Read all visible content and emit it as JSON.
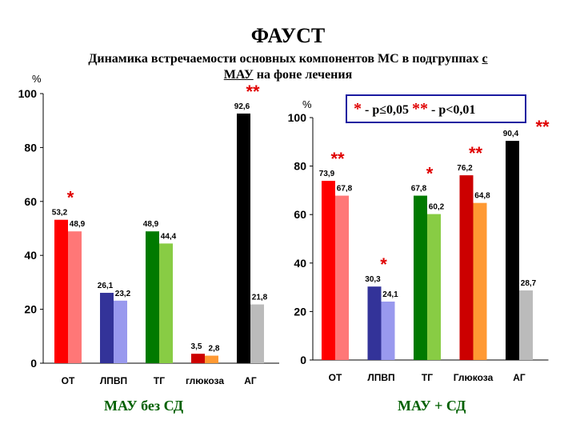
{
  "title": "ФАУСТ",
  "subtitle": {
    "line1_a": "Динамика встречаемости  основных компонентов МС в подгруппах ",
    "line1_b": "с",
    "line2_a": "МАУ",
    "line2_b": " на фоне лечения"
  },
  "legend": {
    "star1": "*",
    "text1": " - p≤0,05  ",
    "star2": "**",
    "text2": " - p<0,01"
  },
  "colors": {
    "before": [
      "#ff0000",
      "#333399",
      "#007a00",
      "#cc0000",
      "#000000"
    ],
    "after": [
      "#ff7777",
      "#9999ee",
      "#88cc44",
      "#ff9933",
      "#bbbbbb"
    ],
    "star": "#e00000",
    "caption": "#006000"
  },
  "chart_data": [
    {
      "type": "bar",
      "caption": "МАУ без СД",
      "unit_label": "%",
      "categories": [
        "ОТ",
        "ЛПВП",
        "ТГ",
        "глюкоза",
        "АГ"
      ],
      "series": [
        {
          "values": [
            53.2,
            26.1,
            48.9,
            3.5,
            92.6
          ],
          "labels": [
            "53,2",
            "26,1",
            "48,9",
            "3,5",
            "92,6"
          ]
        },
        {
          "values": [
            48.9,
            23.2,
            44.4,
            2.8,
            21.8
          ],
          "labels": [
            "48,9",
            "23,2",
            "44,4",
            "2,8",
            "21,8"
          ]
        }
      ],
      "significance": [
        "*",
        "",
        "",
        "",
        "**"
      ],
      "ylim": [
        0,
        100
      ],
      "yticks": [
        0,
        20,
        40,
        60,
        80,
        100
      ]
    },
    {
      "type": "bar",
      "caption": "МАУ + СД",
      "unit_label": "%",
      "categories": [
        "ОТ",
        "ЛПВП",
        "ТГ",
        "Глюкоза",
        "АГ"
      ],
      "series": [
        {
          "values": [
            73.9,
            30.3,
            67.8,
            76.2,
            90.4
          ],
          "labels": [
            "73,9",
            "30,3",
            "67,8",
            "76,2",
            "90,4"
          ]
        },
        {
          "values": [
            67.8,
            24.1,
            60.2,
            64.8,
            28.7
          ],
          "labels": [
            "67,8",
            "24,1",
            "60,2",
            "64,8",
            "28,7"
          ]
        }
      ],
      "significance": [
        "**",
        "*",
        "*",
        "**",
        "**"
      ],
      "ylim": [
        0,
        100
      ],
      "yticks": [
        0,
        20,
        40,
        60,
        80,
        100
      ]
    }
  ]
}
